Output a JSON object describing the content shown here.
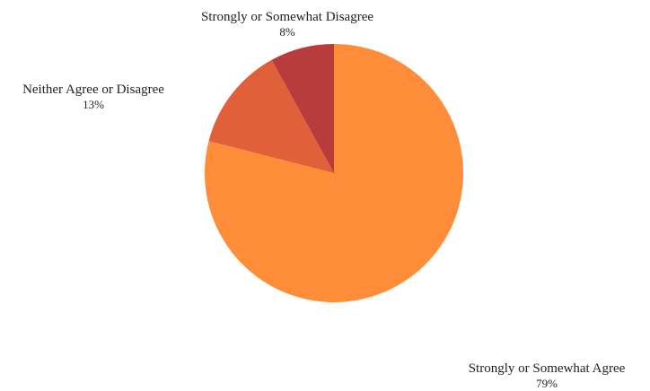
{
  "chart_data": {
    "type": "pie",
    "title": "",
    "slices": [
      {
        "label": "Strongly or Somewhat Agree",
        "value": 79,
        "value_label": "79%",
        "color": "#ff8c38"
      },
      {
        "label": "Neither Agree or Disagree",
        "value": 13,
        "value_label": "13%",
        "color": "#e0603a"
      },
      {
        "label": "Strongly or Somewhat Disagree",
        "value": 8,
        "value_label": "8%",
        "color": "#b93c3c"
      }
    ]
  }
}
